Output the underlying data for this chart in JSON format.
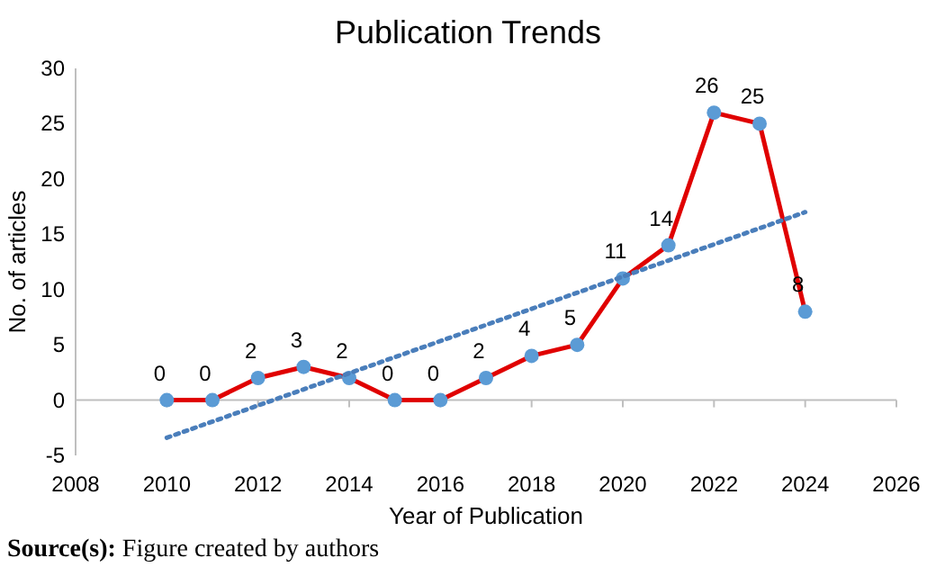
{
  "chart_data": {
    "type": "line",
    "title": "Publication Trends",
    "xlabel": "Year of Publication",
    "ylabel": "No. of articles",
    "annotations": [
      "Source(s): Figure created by authors"
    ],
    "x": [
      2010,
      2011,
      2012,
      2013,
      2014,
      2015,
      2016,
      2017,
      2018,
      2019,
      2020,
      2021,
      2022,
      2023,
      2024
    ],
    "series": [
      {
        "color": "#e00000",
        "values": [
          0,
          0,
          2,
          3,
          2,
          0,
          0,
          2,
          4,
          5,
          11,
          14,
          26,
          25,
          8
        ],
        "marker": "circle",
        "colors": [
          "#5b9bd5",
          "#5b9bd5",
          "#5b9bd5",
          "#5b9bd5",
          "#5b9bd5",
          "#5b9bd5",
          "#5b9bd5",
          "#5b9bd5",
          "#5b9bd5",
          "#5b9bd5",
          "#5b9bd5",
          "#5b9bd5",
          "#5b9bd5",
          "#5b9bd5",
          "#5b9bd5"
        ],
        "data_labels": true,
        "line_style": "solid"
      },
      {
        "type": "line",
        "color": "#4a7ebb",
        "x": [
          2010,
          2024
        ],
        "values": [
          -3.4,
          17.0
        ],
        "marker": "none",
        "line_style": "dotted"
      }
    ],
    "xlim": [
      2008,
      2026
    ],
    "xticks": [
      2008,
      2010,
      2012,
      2014,
      2016,
      2018,
      2020,
      2022,
      2024,
      2026
    ],
    "ylim": [
      -5,
      30
    ],
    "yticks": [
      -5,
      0,
      5,
      10,
      15,
      20,
      25,
      30
    ]
  }
}
